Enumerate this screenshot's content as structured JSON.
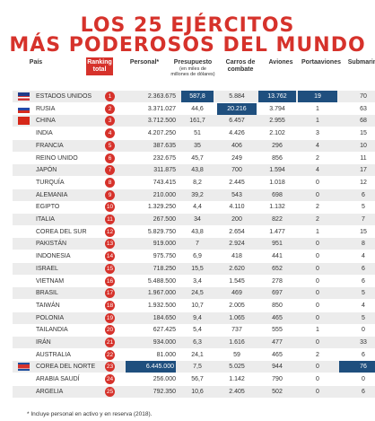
{
  "header": {
    "title_line1": "LOS 25 EJÉRCITOS",
    "title_line2": "MÁS PODEROSOS DEL MUNDO"
  },
  "table": {
    "columns": [
      "País",
      "Ranking total",
      "Personal*",
      "Presupuesto",
      "Carros de combate",
      "Aviones",
      "Portaaviones",
      "Submarinos"
    ],
    "budget_note": "(en miles de millones de dólares)",
    "rows": [
      [
        "ESTADOS UNIDOS",
        "1",
        "2.363.675",
        "587,8",
        "5.884",
        "13.762",
        "19",
        "70"
      ],
      [
        "RUSIA",
        "2",
        "3.371.027",
        "44,6",
        "20.216",
        "3.794",
        "1",
        "63"
      ],
      [
        "CHINA",
        "3",
        "3.712.500",
        "161,7",
        "6.457",
        "2.955",
        "1",
        "68"
      ],
      [
        "INDIA",
        "4",
        "4.207.250",
        "51",
        "4.426",
        "2.102",
        "3",
        "15"
      ],
      [
        "FRANCIA",
        "5",
        "387.635",
        "35",
        "406",
        "296",
        "4",
        "10"
      ],
      [
        "REINO UNIDO",
        "6",
        "232.675",
        "45,7",
        "249",
        "856",
        "2",
        "11"
      ],
      [
        "JAPÓN",
        "7",
        "311.875",
        "43,8",
        "700",
        "1.594",
        "4",
        "17"
      ],
      [
        "TURQUÍA",
        "8",
        "743.415",
        "8,2",
        "2.445",
        "1.018",
        "0",
        "12"
      ],
      [
        "ALEMANIA",
        "9",
        "210.000",
        "39,2",
        "543",
        "698",
        "0",
        "6"
      ],
      [
        "EGIPTO",
        "10",
        "1.329.250",
        "4,4",
        "4.110",
        "1.132",
        "2",
        "5"
      ],
      [
        "ITALIA",
        "11",
        "267.500",
        "34",
        "200",
        "822",
        "2",
        "7"
      ],
      [
        "COREA DEL SUR",
        "12",
        "5.829.750",
        "43,8",
        "2.654",
        "1.477",
        "1",
        "15"
      ],
      [
        "PAKISTÁN",
        "13",
        "919.000",
        "7",
        "2.924",
        "951",
        "0",
        "8"
      ],
      [
        "INDONESIA",
        "14",
        "975.750",
        "6,9",
        "418",
        "441",
        "0",
        "4"
      ],
      [
        "ISRAEL",
        "15",
        "718.250",
        "15,5",
        "2.620",
        "652",
        "0",
        "6"
      ],
      [
        "VIETNAM",
        "16",
        "5.488.500",
        "3,4",
        "1.545",
        "278",
        "0",
        "6"
      ],
      [
        "BRASIL",
        "17",
        "1.967.000",
        "24,5",
        "469",
        "697",
        "0",
        "5"
      ],
      [
        "TAIWÁN",
        "18",
        "1.932.500",
        "10,7",
        "2.005",
        "850",
        "0",
        "4"
      ],
      [
        "POLONIA",
        "19",
        "184.650",
        "9,4",
        "1.065",
        "465",
        "0",
        "5"
      ],
      [
        "TAILANDIA",
        "20",
        "627.425",
        "5,4",
        "737",
        "555",
        "1",
        "0"
      ],
      [
        "IRÁN",
        "21",
        "934.000",
        "6,3",
        "1.616",
        "477",
        "0",
        "33"
      ],
      [
        "AUSTRALIA",
        "22",
        "81.000",
        "24,1",
        "59",
        "465",
        "2",
        "6"
      ],
      [
        "COREA DEL NORTE",
        "23",
        "6.445.000",
        "7,5",
        "5.025",
        "944",
        "0",
        "76"
      ],
      [
        "ARABIA SAUDÍ",
        "24",
        "256.000",
        "56,7",
        "1.142",
        "790",
        "0",
        "0"
      ],
      [
        "ARGELIA",
        "25",
        "792.350",
        "10,6",
        "2.405",
        "502",
        "0",
        "6"
      ]
    ]
  },
  "footnote": "* Incluye personal en activo y en reserva (2018)."
}
